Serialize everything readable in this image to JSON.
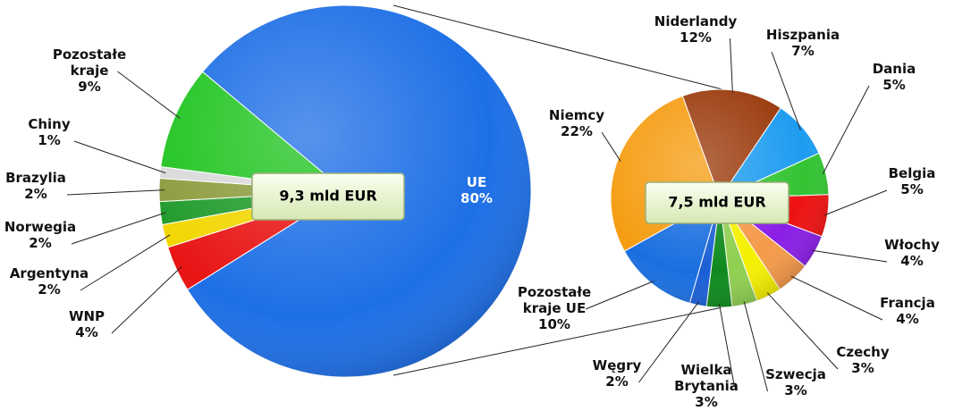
{
  "chart_data": [
    {
      "type": "pie",
      "center_label": "9,3 mld EUR",
      "categories": [
        "WNP",
        "Argentyna",
        "Norwegia",
        "Brazylia",
        "Chiny",
        "Pozostałe kraje",
        "UE"
      ],
      "values": [
        4,
        2,
        2,
        2,
        1,
        9,
        80
      ],
      "value_labels": [
        "4%",
        "2%",
        "2%",
        "2%",
        "1%",
        "9%",
        "80%"
      ],
      "colors": [
        "#e81414",
        "#f2d600",
        "#1f9a2a",
        "#8c9b3c",
        "#d9d9d9",
        "#1fc41f",
        "#1e6fe6"
      ]
    },
    {
      "type": "pie",
      "center_label": "7,5 mld EUR",
      "categories": [
        "Niderlandy",
        "Hiszpania",
        "Dania",
        "Belgia",
        "Włochy",
        "Francja",
        "Czechy",
        "Szwecja",
        "Wielka Brytania",
        "Węgry",
        "Pozostałe kraje UE",
        "Niemcy"
      ],
      "values": [
        12,
        7,
        5,
        5,
        4,
        4,
        3,
        3,
        3,
        2,
        10,
        22
      ],
      "value_labels": [
        "12%",
        "7%",
        "5%",
        "5%",
        "4%",
        "4%",
        "3%",
        "3%",
        "3%",
        "2%",
        "10%",
        "22%"
      ],
      "colors": [
        "#9a3a0c",
        "#1e9cf0",
        "#33c433",
        "#ee1111",
        "#8a1ee6",
        "#f59a4a",
        "#f5f000",
        "#8fcf50",
        "#0f8a1e",
        "#1a5fd6",
        "#1a6fe0",
        "#f59c10"
      ]
    }
  ]
}
